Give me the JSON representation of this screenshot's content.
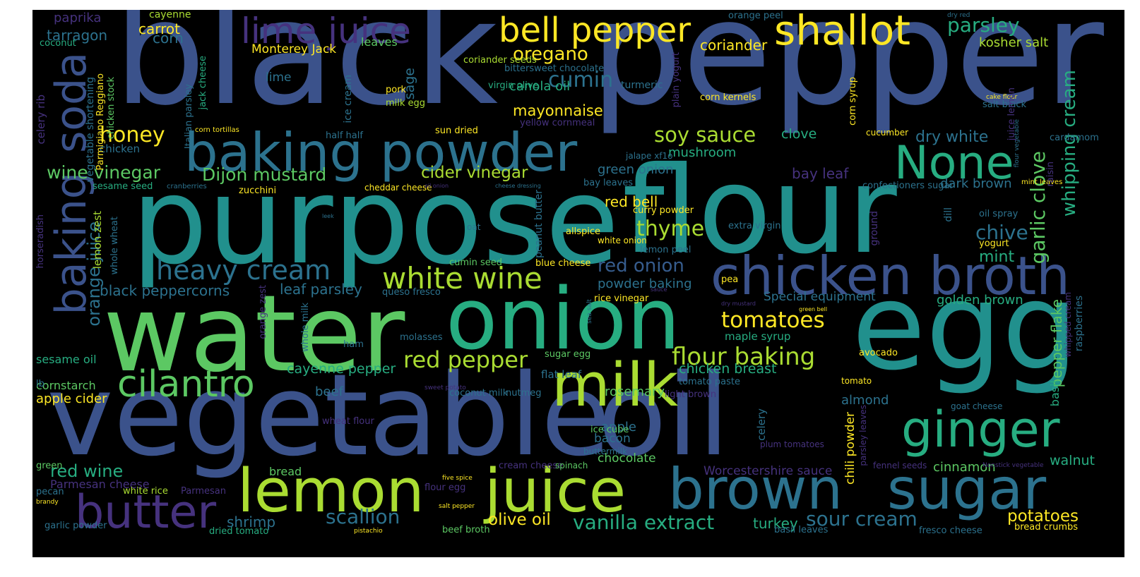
{
  "palette": {
    "purple": "#46327e",
    "blue": "#3b528b",
    "steel": "#365c8d",
    "teal": "#2c728e",
    "teal2": "#21908d",
    "green": "#27ad81",
    "lightgreen": "#5cc863",
    "lime": "#aadc32",
    "yellow": "#fde725",
    "background": "#000000"
  },
  "words": [
    {
      "text": "black",
      "color": "#3b528b"
    },
    {
      "text": "pepper",
      "color": "#3b528b"
    },
    {
      "text": "purpose",
      "color": "#21908d"
    },
    {
      "text": "flour",
      "color": "#21908d"
    },
    {
      "text": "water",
      "color": "#5cc863"
    },
    {
      "text": "onion",
      "color": "#27ad81"
    },
    {
      "text": "egg",
      "color": "#21908d"
    },
    {
      "text": "vegetable",
      "color": "#3b528b"
    },
    {
      "text": "oil",
      "color": "#3b528b"
    },
    {
      "text": "baking powder",
      "color": "#2c728e"
    },
    {
      "text": "chicken broth",
      "color": "#3b528b"
    },
    {
      "text": "brown",
      "color": "#2c728e"
    },
    {
      "text": "sugar",
      "color": "#2c728e"
    },
    {
      "text": "lemon",
      "color": "#aadc32"
    },
    {
      "text": "juice",
      "color": "#aadc32"
    },
    {
      "text": "milk",
      "color": "#aadc32"
    },
    {
      "text": "ginger",
      "color": "#27ad81"
    },
    {
      "text": "cilantro",
      "color": "#5cc863"
    },
    {
      "text": "butter",
      "color": "#46327e"
    },
    {
      "text": "shallot",
      "color": "#fde725"
    },
    {
      "text": "None",
      "color": "#27ad81"
    },
    {
      "text": "bell pepper",
      "color": "#fde725"
    },
    {
      "text": "lime juice",
      "color": "#46327e"
    },
    {
      "text": "soda",
      "color": "#3b528b"
    },
    {
      "text": "baking",
      "color": "#3b528b"
    },
    {
      "text": "heavy cream",
      "color": "#2c728e"
    },
    {
      "text": "white wine",
      "color": "#aadc32"
    },
    {
      "text": "flour baking",
      "color": "#aadc32"
    },
    {
      "text": "tomatoes",
      "color": "#fde725"
    },
    {
      "text": "red pepper",
      "color": "#aadc32"
    },
    {
      "text": "vanilla extract",
      "color": "#27ad81"
    },
    {
      "text": "scallion",
      "color": "#2c728e"
    },
    {
      "text": "soy sauce",
      "color": "#aadc32"
    },
    {
      "text": "cumin",
      "color": "#2c728e"
    },
    {
      "text": "oregano",
      "color": "#fde725"
    },
    {
      "text": "honey",
      "color": "#fde725"
    },
    {
      "text": "parsley",
      "color": "#27ad81"
    },
    {
      "text": "wine vinegar",
      "color": "#5cc863"
    },
    {
      "text": "Dijon mustard",
      "color": "#5cc863"
    },
    {
      "text": "cider vinegar",
      "color": "#aadc32"
    },
    {
      "text": "orange juice",
      "color": "#2c728e"
    },
    {
      "text": "red onion",
      "color": "#365c8d"
    },
    {
      "text": "thyme",
      "color": "#aadc32"
    },
    {
      "text": "garlic clove",
      "color": "#5cc863"
    },
    {
      "text": "whipping cream",
      "color": "#27ad81"
    },
    {
      "text": "dry white",
      "color": "#2c728e"
    },
    {
      "text": "chive",
      "color": "#2c728e"
    },
    {
      "text": "mint",
      "color": "#27ad81"
    },
    {
      "text": "red wine",
      "color": "#27ad81"
    },
    {
      "text": "pepper flake",
      "color": "#5cc863"
    },
    {
      "text": "sour cream",
      "color": "#2c728e"
    },
    {
      "text": "potatoes",
      "color": "#fde725"
    },
    {
      "text": "olive oil",
      "color": "#fde725"
    },
    {
      "text": "shrimp",
      "color": "#2c728e"
    },
    {
      "text": "turkey",
      "color": "#27ad81"
    },
    {
      "text": "chicken breast",
      "color": "#27ad81"
    },
    {
      "text": "cayenne pepper",
      "color": "#27ad81"
    },
    {
      "text": "black peppercorns",
      "color": "#2c728e"
    },
    {
      "text": "leaf parsley",
      "color": "#2c728e"
    },
    {
      "text": "powder baking",
      "color": "#2c728e"
    },
    {
      "text": "green onion",
      "color": "#2c728e"
    },
    {
      "text": "mayonnaise",
      "color": "#fde725"
    },
    {
      "text": "canola oil",
      "color": "#27ad81"
    },
    {
      "text": "sage",
      "color": "#2c728e"
    },
    {
      "text": "clove",
      "color": "#27ad81"
    },
    {
      "text": "mushroom",
      "color": "#27ad81"
    },
    {
      "text": "carrot",
      "color": "#fde725"
    },
    {
      "text": "corn",
      "color": "#2c728e"
    },
    {
      "text": "tarragon",
      "color": "#2c728e"
    },
    {
      "text": "paprika",
      "color": "#46327e"
    },
    {
      "text": "coriander",
      "color": "#fde725"
    },
    {
      "text": "kosher salt",
      "color": "#aadc32"
    },
    {
      "text": "bay leaf",
      "color": "#46327e"
    },
    {
      "text": "dark brown",
      "color": "#2c728e"
    },
    {
      "text": "red bell",
      "color": "#fde725"
    },
    {
      "text": "Special equipment",
      "color": "#2c728e"
    },
    {
      "text": "golden brown",
      "color": "#27ad81"
    },
    {
      "text": "maple syrup",
      "color": "#27ad81"
    },
    {
      "text": "cinnamon",
      "color": "#5cc863"
    },
    {
      "text": "walnut",
      "color": "#27ad81"
    },
    {
      "text": "basil",
      "color": "#27ad81"
    },
    {
      "text": "almond",
      "color": "#2c728e"
    },
    {
      "text": "chili powder",
      "color": "#fde725"
    },
    {
      "text": "celery",
      "color": "#2c728e"
    },
    {
      "text": "apple",
      "color": "#2c728e"
    },
    {
      "text": "bacon",
      "color": "#2c728e"
    },
    {
      "text": "chocolate",
      "color": "#5cc863"
    },
    {
      "text": "rosemary",
      "color": "#5cc863"
    },
    {
      "text": "flat leaf",
      "color": "#2c728e"
    },
    {
      "text": "beef",
      "color": "#2c728e"
    },
    {
      "text": "apple cider",
      "color": "#fde725"
    },
    {
      "text": "cornstarch",
      "color": "#5cc863"
    },
    {
      "text": "sesame oil",
      "color": "#27ad81"
    },
    {
      "text": "bread",
      "color": "#5cc863"
    },
    {
      "text": "Worcestershire sauce",
      "color": "#46327e"
    },
    {
      "text": "Parmesan cheese",
      "color": "#46327e"
    },
    {
      "text": "chicken",
      "color": "#2c728e"
    },
    {
      "text": "lemon zest",
      "color": "#aadc32"
    },
    {
      "text": "whole wheat",
      "color": "#2c728e"
    },
    {
      "text": "Monterey Jack",
      "color": "#fde725"
    },
    {
      "text": "lime",
      "color": "#2c728e"
    },
    {
      "text": "leaves",
      "color": "#5cc863"
    },
    {
      "text": "coconut",
      "color": "#27ad81"
    },
    {
      "text": "cayenne",
      "color": "#aadc32"
    },
    {
      "text": "coriander seeds",
      "color": "#aadc32"
    },
    {
      "text": "bittersweet chocolate",
      "color": "#2c728e"
    },
    {
      "text": "virgin olive",
      "color": "#27ad81"
    },
    {
      "text": "turmeric",
      "color": "#2c728e"
    },
    {
      "text": "pork",
      "color": "#fde725"
    },
    {
      "text": "milk egg",
      "color": "#aadc32"
    },
    {
      "text": "ice cream",
      "color": "#2c728e"
    },
    {
      "text": "half half",
      "color": "#2c728e"
    },
    {
      "text": "sun dried",
      "color": "#fde725"
    },
    {
      "text": "yellow cornmeal",
      "color": "#46327e"
    },
    {
      "text": "jalape xf1o",
      "color": "#2c728e"
    },
    {
      "text": "bay leaves",
      "color": "#2c728e"
    },
    {
      "text": "confectioners sugar",
      "color": "#2c728e"
    },
    {
      "text": "curry powder",
      "color": "#fde725"
    },
    {
      "text": "extra virgin",
      "color": "#2c728e"
    },
    {
      "text": "allspice",
      "color": "#fde725"
    },
    {
      "text": "white onion",
      "color": "#fde725"
    },
    {
      "text": "lemon peel",
      "color": "#2c728e"
    },
    {
      "text": "cumin seed",
      "color": "#5cc863"
    },
    {
      "text": "blue cheese",
      "color": "#fde725"
    },
    {
      "text": "queso fresco",
      "color": "#2c728e"
    },
    {
      "text": "rice vinegar",
      "color": "#fde725"
    },
    {
      "text": "pea",
      "color": "#fde725"
    },
    {
      "text": "ham",
      "color": "#2c728e"
    },
    {
      "text": "molasses",
      "color": "#2c728e"
    },
    {
      "text": "sugar egg",
      "color": "#5cc863"
    },
    {
      "text": "avocado",
      "color": "#fde725"
    },
    {
      "text": "tomato",
      "color": "#fde725"
    },
    {
      "text": "tomato paste",
      "color": "#2c728e"
    },
    {
      "text": "light brown",
      "color": "#46327e"
    },
    {
      "text": "coconut milk",
      "color": "#2c728e"
    },
    {
      "text": "nutmeg",
      "color": "#2c728e"
    },
    {
      "text": "wheat flour",
      "color": "#46327e"
    },
    {
      "text": "ice cube",
      "color": "#5cc863"
    },
    {
      "text": "buttermilk",
      "color": "#2c728e"
    },
    {
      "text": "cream cheese",
      "color": "#46327e"
    },
    {
      "text": "spinach",
      "color": "#5cc863"
    },
    {
      "text": "fennel seeds",
      "color": "#46327e"
    },
    {
      "text": "goat cheese",
      "color": "#2c728e"
    },
    {
      "text": "plum tomatoes",
      "color": "#46327e"
    },
    {
      "text": "Parmesan",
      "color": "#46327e"
    },
    {
      "text": "white rice",
      "color": "#aadc32"
    },
    {
      "text": "flour egg",
      "color": "#46327e"
    },
    {
      "text": "beef broth",
      "color": "#5cc863"
    },
    {
      "text": "dried tomato",
      "color": "#27ad81"
    },
    {
      "text": "basil leaves",
      "color": "#2c728e"
    },
    {
      "text": "fresco cheese",
      "color": "#2c728e"
    },
    {
      "text": "bread crumbs",
      "color": "#fde725"
    },
    {
      "text": "garlic powder",
      "color": "#2c728e"
    },
    {
      "text": "pecan",
      "color": "#2c728e"
    },
    {
      "text": "green",
      "color": "#5cc863"
    },
    {
      "text": "lb",
      "color": "#2c728e"
    },
    {
      "text": "sesame seed",
      "color": "#27ad81"
    },
    {
      "text": "zucchini",
      "color": "#fde725"
    },
    {
      "text": "cranberries",
      "color": "#2c728e"
    },
    {
      "text": "cheddar cheese",
      "color": "#fde725"
    },
    {
      "text": "oil onion",
      "color": "#46327e"
    },
    {
      "text": "cheese dressing",
      "color": "#2c728e"
    },
    {
      "text": "oat",
      "color": "#2c728e"
    },
    {
      "text": "leek",
      "color": "#2c728e"
    },
    {
      "text": "sauce",
      "color": "#46327e"
    },
    {
      "text": "dry mustard",
      "color": "#46327e"
    },
    {
      "text": "green bell",
      "color": "#fde725"
    },
    {
      "text": "orange peel",
      "color": "#2c728e"
    },
    {
      "text": "dry red",
      "color": "#2c728e"
    },
    {
      "text": "corn kernels",
      "color": "#fde725"
    },
    {
      "text": "salt black",
      "color": "#2c728e"
    },
    {
      "text": "cucumber",
      "color": "#fde725"
    },
    {
      "text": "mint leaves",
      "color": "#fde725"
    },
    {
      "text": "cake flour",
      "color": "#fde725"
    },
    {
      "text": "cardamom",
      "color": "#2c728e"
    },
    {
      "text": "oil spray",
      "color": "#2c728e"
    },
    {
      "text": "yogurt",
      "color": "#fde725"
    },
    {
      "text": "corn tortillas",
      "color": "#fde725"
    },
    {
      "text": "sweet potato",
      "color": "#46327e"
    },
    {
      "text": "salt pepper",
      "color": "#fde725"
    },
    {
      "text": "five spice",
      "color": "#fde725"
    },
    {
      "text": "brandy",
      "color": "#fde725"
    },
    {
      "text": "pistachio",
      "color": "#fde725"
    },
    {
      "text": "Nonstick vegetable",
      "color": "#46327e"
    },
    {
      "text": "celery rib",
      "color": "#46327e"
    },
    {
      "text": "horseradish",
      "color": "#46327e"
    },
    {
      "text": "vegetable shortening",
      "color": "#2c728e"
    },
    {
      "text": "Parmigiano Reggiano",
      "color": "#fde725"
    },
    {
      "text": "chicken stock",
      "color": "#5cc863"
    },
    {
      "text": "Italian parsley",
      "color": "#2c728e"
    },
    {
      "text": "jack cheese",
      "color": "#27ad81"
    },
    {
      "text": "peanut butter",
      "color": "#2c728e"
    },
    {
      "text": "plain yogurt",
      "color": "#46327e"
    },
    {
      "text": "orange zest",
      "color": "#46327e"
    },
    {
      "text": "whole milk",
      "color": "#2c728e"
    },
    {
      "text": "sea salt",
      "color": "#2c728e"
    },
    {
      "text": "ground",
      "color": "#46327e"
    },
    {
      "text": "dill",
      "color": "#2c728e"
    },
    {
      "text": "corn syrup",
      "color": "#fde725"
    },
    {
      "text": "flour vegetable",
      "color": "#2c728e"
    },
    {
      "text": "juice lemon",
      "color": "#46327e"
    },
    {
      "text": "raisin",
      "color": "#46327e"
    },
    {
      "text": "whipped cream",
      "color": "#46327e"
    },
    {
      "text": "raspberries",
      "color": "#2c728e"
    },
    {
      "text": "parsley leaves",
      "color": "#46327e"
    },
    {
      "text": "balsamic vinegar",
      "color": "#46327e"
    }
  ]
}
